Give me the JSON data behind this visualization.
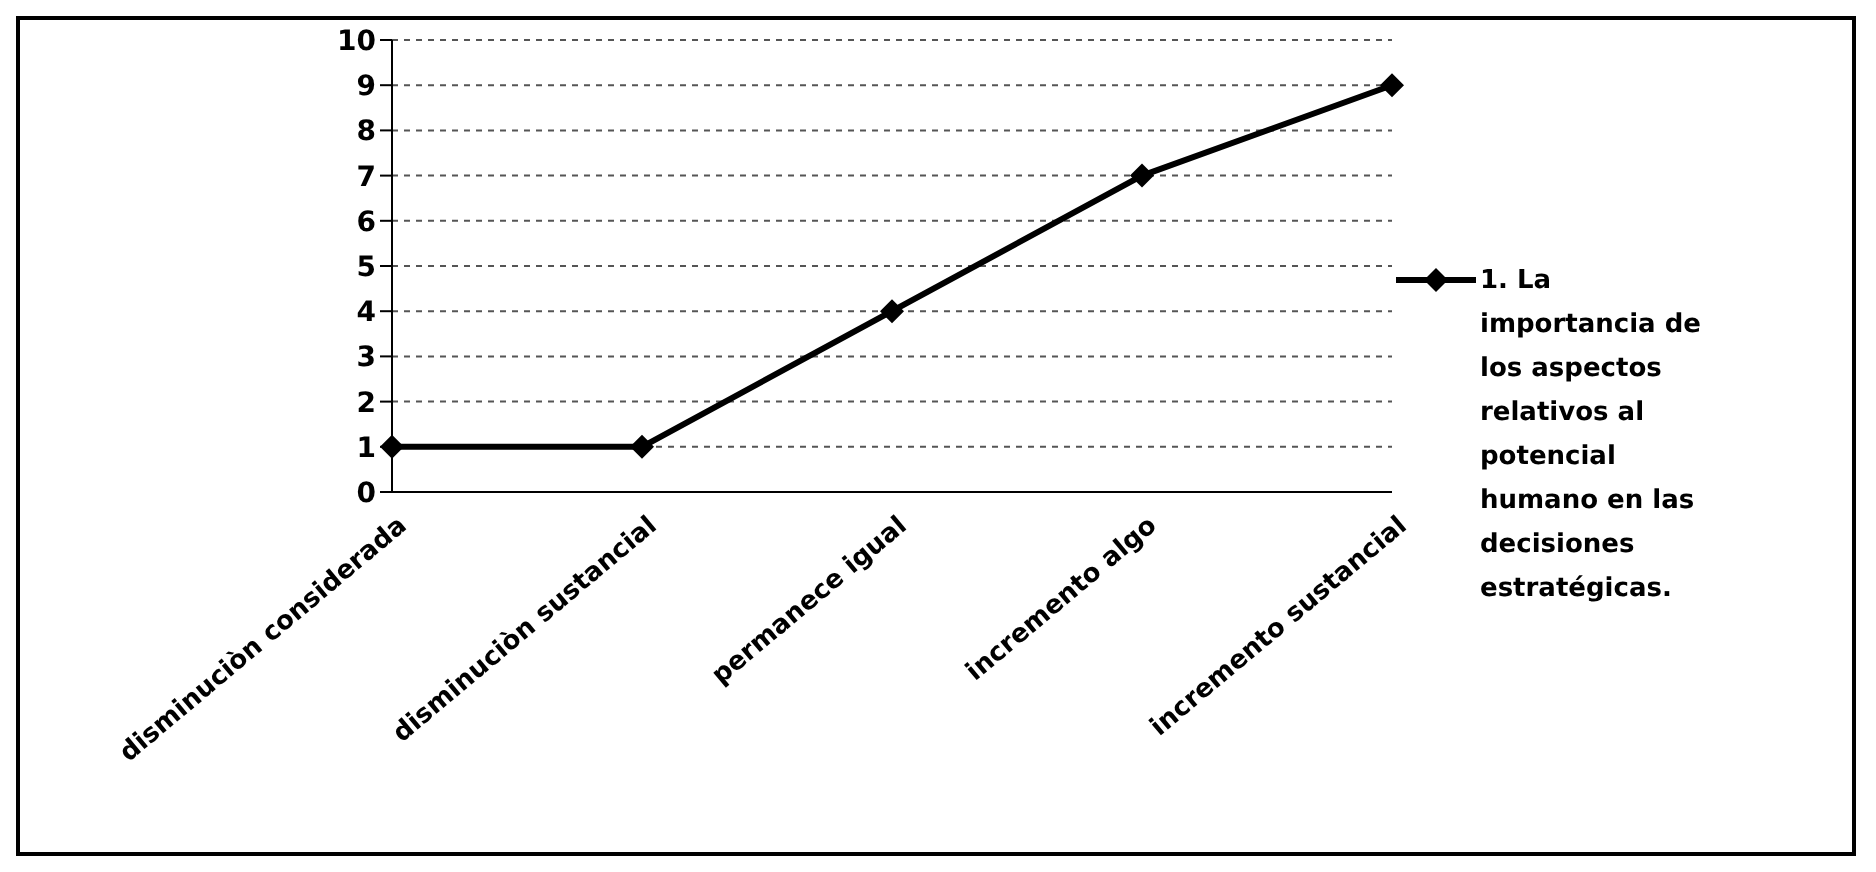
{
  "chart_data": {
    "type": "line",
    "categories": [
      "disminuciòn considerada",
      "disminuciòn sustancial",
      "permanece igual",
      "incremento algo",
      "incremento sustancial"
    ],
    "series": [
      {
        "name": "1. La importancia de los aspectos relativos al potencial humano en las decisiones estratégicas.",
        "color": "#000000",
        "values": [
          1,
          1,
          4,
          7,
          9
        ]
      }
    ],
    "ylim": [
      0,
      10
    ],
    "yticks": [
      0,
      1,
      2,
      3,
      4,
      5,
      6,
      7,
      8,
      9,
      10
    ],
    "grid": "y",
    "legend": "right",
    "marker": "diamond",
    "line_style": "solid"
  }
}
